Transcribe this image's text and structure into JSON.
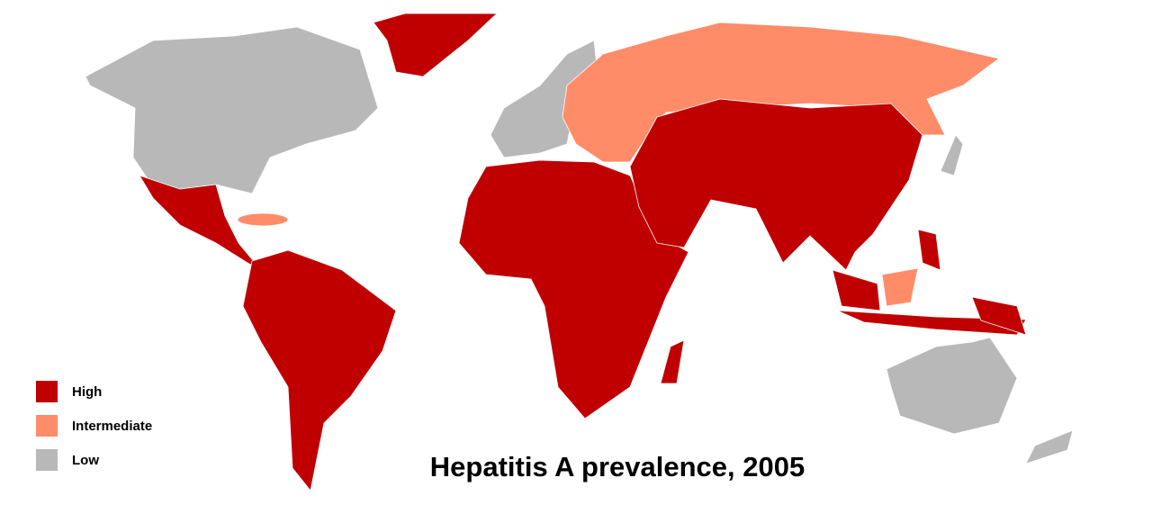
{
  "title": "Hepatitis A prevalence, 2005",
  "legend": [
    {
      "label": "High",
      "color": "#c00000"
    },
    {
      "label": "Intermediate",
      "color": "#ff8c69"
    },
    {
      "label": "Low",
      "color": "#b8b8b8"
    }
  ]
}
